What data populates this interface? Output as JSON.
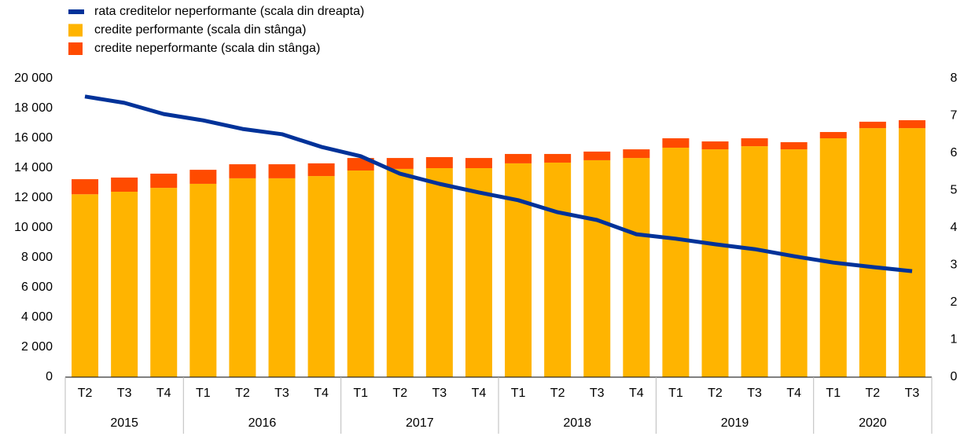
{
  "chart_data": {
    "type": "bar",
    "groups": [
      {
        "label": "2015",
        "categories": [
          "T2",
          "T3",
          "T4"
        ]
      },
      {
        "label": "2016",
        "categories": [
          "T1",
          "T2",
          "T3",
          "T4"
        ]
      },
      {
        "label": "2017",
        "categories": [
          "T1",
          "T2",
          "T3",
          "T4"
        ]
      },
      {
        "label": "2018",
        "categories": [
          "T1",
          "T2",
          "T3",
          "T4"
        ]
      },
      {
        "label": "2019",
        "categories": [
          "T1",
          "T2",
          "T3",
          "T4"
        ]
      },
      {
        "label": "2020",
        "categories": [
          "T1",
          "T2",
          "T3"
        ]
      }
    ],
    "series": [
      {
        "name": "rata creditelor neperformante (scala din dreapta)",
        "type": "line",
        "axis": "y2",
        "color": "#003299",
        "values": [
          7.52,
          7.35,
          7.05,
          6.88,
          6.65,
          6.51,
          6.17,
          5.92,
          5.45,
          5.18,
          4.95,
          4.74,
          4.42,
          4.21,
          3.83,
          3.71,
          3.56,
          3.43,
          3.24,
          3.07,
          2.95,
          2.84
        ]
      },
      {
        "name": "credite performante (scala din stânga)",
        "type": "bar",
        "color": "#ffb400",
        "values": [
          12250,
          12420,
          12680,
          12950,
          13320,
          13320,
          13470,
          13840,
          13950,
          14000,
          14000,
          14320,
          14370,
          14530,
          14680,
          15370,
          15260,
          15470,
          15260,
          16000,
          16680,
          16680
        ]
      },
      {
        "name": "credite neperformante (scala din stânga)",
        "type": "bar",
        "color": "#ff4b00",
        "values": [
          1010,
          950,
          950,
          940,
          940,
          940,
          850,
          840,
          730,
          740,
          680,
          630,
          580,
          580,
          580,
          630,
          530,
          530,
          480,
          420,
          430,
          530
        ]
      }
    ],
    "stacked": true,
    "ylim": [
      0,
      20000
    ],
    "yticks": [
      0,
      {
        "value": 2000,
        "label": "2 000"
      },
      {
        "value": 4000,
        "label": "4 000"
      },
      {
        "value": 6000,
        "label": "6 000"
      },
      {
        "value": 8000,
        "label": "8 000"
      },
      {
        "value": 10000,
        "label": "10 000"
      },
      {
        "value": 12000,
        "label": "12 000"
      },
      {
        "value": 14000,
        "label": "14 000"
      },
      {
        "value": 16000,
        "label": "16 000"
      },
      {
        "value": 18000,
        "label": "18 000"
      },
      {
        "value": 20000,
        "label": "20 000"
      }
    ],
    "y2lim": [
      0,
      8
    ],
    "y2ticks": [
      0,
      1,
      2,
      3,
      4,
      5,
      6,
      7,
      8
    ],
    "grid": false,
    "legend": "top-left"
  }
}
